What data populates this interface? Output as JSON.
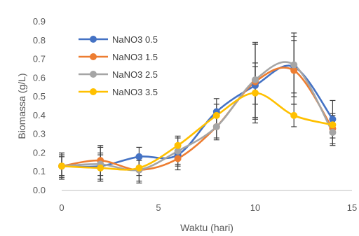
{
  "chart_data": {
    "type": "scatter",
    "xlabel": "Waktu (hari)",
    "ylabel": "Biomassa (g/L)",
    "xlim": [
      0,
      15
    ],
    "ylim": [
      0,
      0.9
    ],
    "xticks": [
      "0",
      "5",
      "10",
      "15"
    ],
    "yticks": [
      "0.0",
      "0.1",
      "0.2",
      "0.3",
      "0.4",
      "0.5",
      "0.6",
      "0.7",
      "0.8",
      "0.9"
    ],
    "grid": false,
    "legend_position": "top-left",
    "smoothed_lines": true,
    "error_bars": true,
    "series": [
      {
        "name": "NaNO3 0.5",
        "color": "#4472C4",
        "x": [
          0,
          2,
          4,
          6,
          8,
          10,
          12,
          14
        ],
        "y": [
          0.13,
          0.13,
          0.18,
          0.19,
          0.42,
          0.56,
          0.66,
          0.38
        ],
        "err": [
          0.06,
          0.07,
          0.05,
          0.06,
          0.07,
          0.1,
          0.14,
          0.1
        ]
      },
      {
        "name": "NaNO3 1.5",
        "color": "#ED7D31",
        "x": [
          0,
          2,
          4,
          6,
          8,
          10,
          12,
          14
        ],
        "y": [
          0.13,
          0.16,
          0.11,
          0.17,
          0.34,
          0.58,
          0.64,
          0.33
        ],
        "err": [
          0.07,
          0.08,
          0.06,
          0.06,
          0.07,
          0.2,
          0.18,
          0.08
        ]
      },
      {
        "name": "NaNO3 2.5",
        "color": "#A5A5A5",
        "x": [
          0,
          2,
          4,
          6,
          8,
          10,
          12,
          14
        ],
        "y": [
          0.13,
          0.14,
          0.11,
          0.21,
          0.34,
          0.59,
          0.67,
          0.31
        ],
        "err": [
          0.07,
          0.09,
          0.07,
          0.07,
          0.06,
          0.2,
          0.17,
          0.07
        ]
      },
      {
        "name": "NaNO3 3.5",
        "color": "#FFC000",
        "x": [
          0,
          2,
          4,
          6,
          8,
          10,
          12,
          14
        ],
        "y": [
          0.13,
          0.12,
          0.12,
          0.24,
          0.4,
          0.52,
          0.4,
          0.35
        ],
        "err": [
          0.05,
          0.07,
          0.04,
          0.05,
          0.06,
          0.16,
          0.06,
          0.05
        ]
      }
    ]
  }
}
